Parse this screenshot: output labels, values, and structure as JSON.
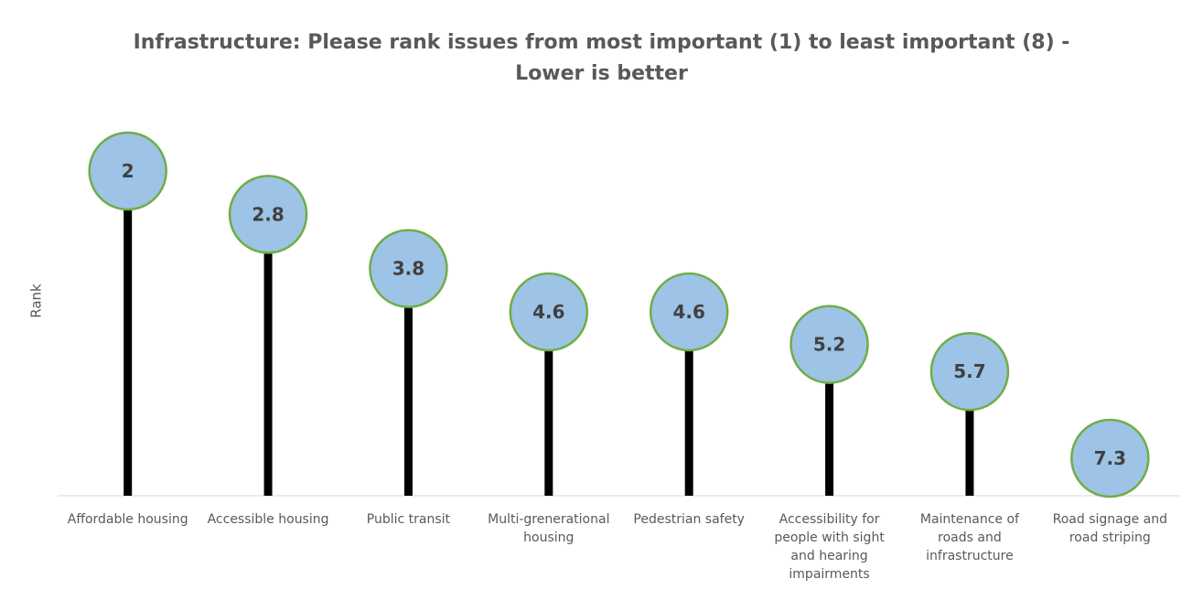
{
  "chart_data": {
    "type": "lollipop",
    "title": "Infrastructure: Please rank issues from most important (1) to least important (8) - Lower is better",
    "title_lines": [
      "Infrastructure: Please rank issues from most important (1) to least important (8) -",
      "Lower is better"
    ],
    "ylabel": "Rank",
    "xlabel": "",
    "categories": [
      [
        "Affordable housing"
      ],
      [
        "Accessible housing"
      ],
      [
        "Public transit"
      ],
      [
        "Multi-grenerational",
        "housing"
      ],
      [
        "Pedestrian safety"
      ],
      [
        "Accessibility for",
        "people with sight",
        "and hearing",
        "impairments"
      ],
      [
        "Maintenance of",
        "roads and",
        "infrastructure"
      ],
      [
        "Road signage and",
        "road striping"
      ]
    ],
    "values": [
      2,
      2.8,
      3.8,
      4.6,
      4.6,
      5.2,
      5.7,
      7.3
    ],
    "value_labels": [
      "2",
      "2.8",
      "3.8",
      "4.6",
      "4.6",
      "5.2",
      "5.7",
      "7.3"
    ],
    "y_axis_reversed": true,
    "grid": false,
    "legend": "none",
    "colors": {
      "marker_fill": "#9DC3E6",
      "marker_stroke": "#70AD47",
      "stem": "#000000",
      "axis": "#D9D9D9",
      "text": "#595959"
    }
  }
}
